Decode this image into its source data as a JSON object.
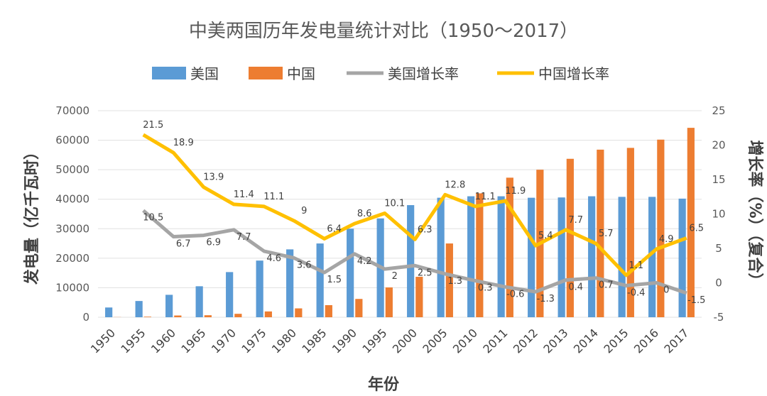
{
  "chart_data": {
    "type": "bar",
    "title": "中美两国历年发电量统计对比（1950～2017）",
    "xlabel": "年份",
    "ylabel": "发电量（亿千瓦时）",
    "y2label": "增长率（%）（复合）",
    "categories": [
      "1950",
      "1955",
      "1960",
      "1965",
      "1970",
      "1975",
      "1980",
      "1985",
      "1990",
      "1995",
      "2000",
      "2005",
      "2010",
      "2011",
      "2012",
      "2013",
      "2014",
      "2015",
      "2016",
      "2017"
    ],
    "ylim": [
      0,
      70000
    ],
    "yticks": [
      "0",
      "10000",
      "20000",
      "30000",
      "40000",
      "50000",
      "60000",
      "70000"
    ],
    "y2lim": [
      -5,
      25
    ],
    "y2ticks": [
      "-5",
      "0",
      "5",
      "10",
      "15",
      "20",
      "25"
    ],
    "grid": true,
    "legend_position": "top",
    "series": [
      {
        "name": "美国",
        "type": "bar",
        "axis": "left",
        "color": "#5B9BD5",
        "values": [
          3300,
          5500,
          7600,
          10500,
          15300,
          19200,
          23000,
          25000,
          30000,
          33500,
          38000,
          40500,
          41000,
          41000,
          40500,
          40600,
          41000,
          40800,
          40800,
          40200
        ]
      },
      {
        "name": "中国",
        "type": "bar",
        "axis": "left",
        "color": "#ED7D31",
        "values": [
          45,
          190,
          590,
          680,
          1160,
          1960,
          3000,
          4100,
          6200,
          10100,
          13700,
          25000,
          42000,
          47300,
          50000,
          53700,
          56800,
          57400,
          60200,
          64200
        ]
      },
      {
        "name": "美国增长率",
        "type": "line",
        "axis": "right",
        "color": "#A5A5A5",
        "values": [
          null,
          10.5,
          6.7,
          6.9,
          7.7,
          4.6,
          3.6,
          1.5,
          4.2,
          2.0,
          2.5,
          1.3,
          0.3,
          -0.6,
          -1.3,
          0.4,
          0.7,
          -0.4,
          0,
          -1.5
        ],
        "labels": [
          "",
          "10.5",
          "6.7",
          "6.9",
          "7.7",
          "4.6",
          "3.6",
          "1.5",
          "4.2",
          "2",
          "2.5",
          "1.3",
          "0.3",
          "-0.6",
          "-1.3",
          "0.4",
          "0.7",
          "-0.4",
          "0",
          "-1.5"
        ]
      },
      {
        "name": "中国增长率",
        "type": "line",
        "axis": "right",
        "color": "#FFC000",
        "values": [
          null,
          21.5,
          18.9,
          13.9,
          11.4,
          11.1,
          9.0,
          6.4,
          8.6,
          10.1,
          6.3,
          12.8,
          11.1,
          11.9,
          5.4,
          7.7,
          5.7,
          1.1,
          4.9,
          6.5
        ],
        "labels": [
          "",
          "21.5",
          "18.9",
          "13.9",
          "11.4",
          "11.1",
          "9",
          "6.4",
          "8.6",
          "10.1",
          "6.3",
          "12.8",
          "11.1",
          "11.9",
          "5.4",
          "7.7",
          "5.7",
          "1.1",
          "4.9",
          "6.5"
        ]
      }
    ]
  }
}
